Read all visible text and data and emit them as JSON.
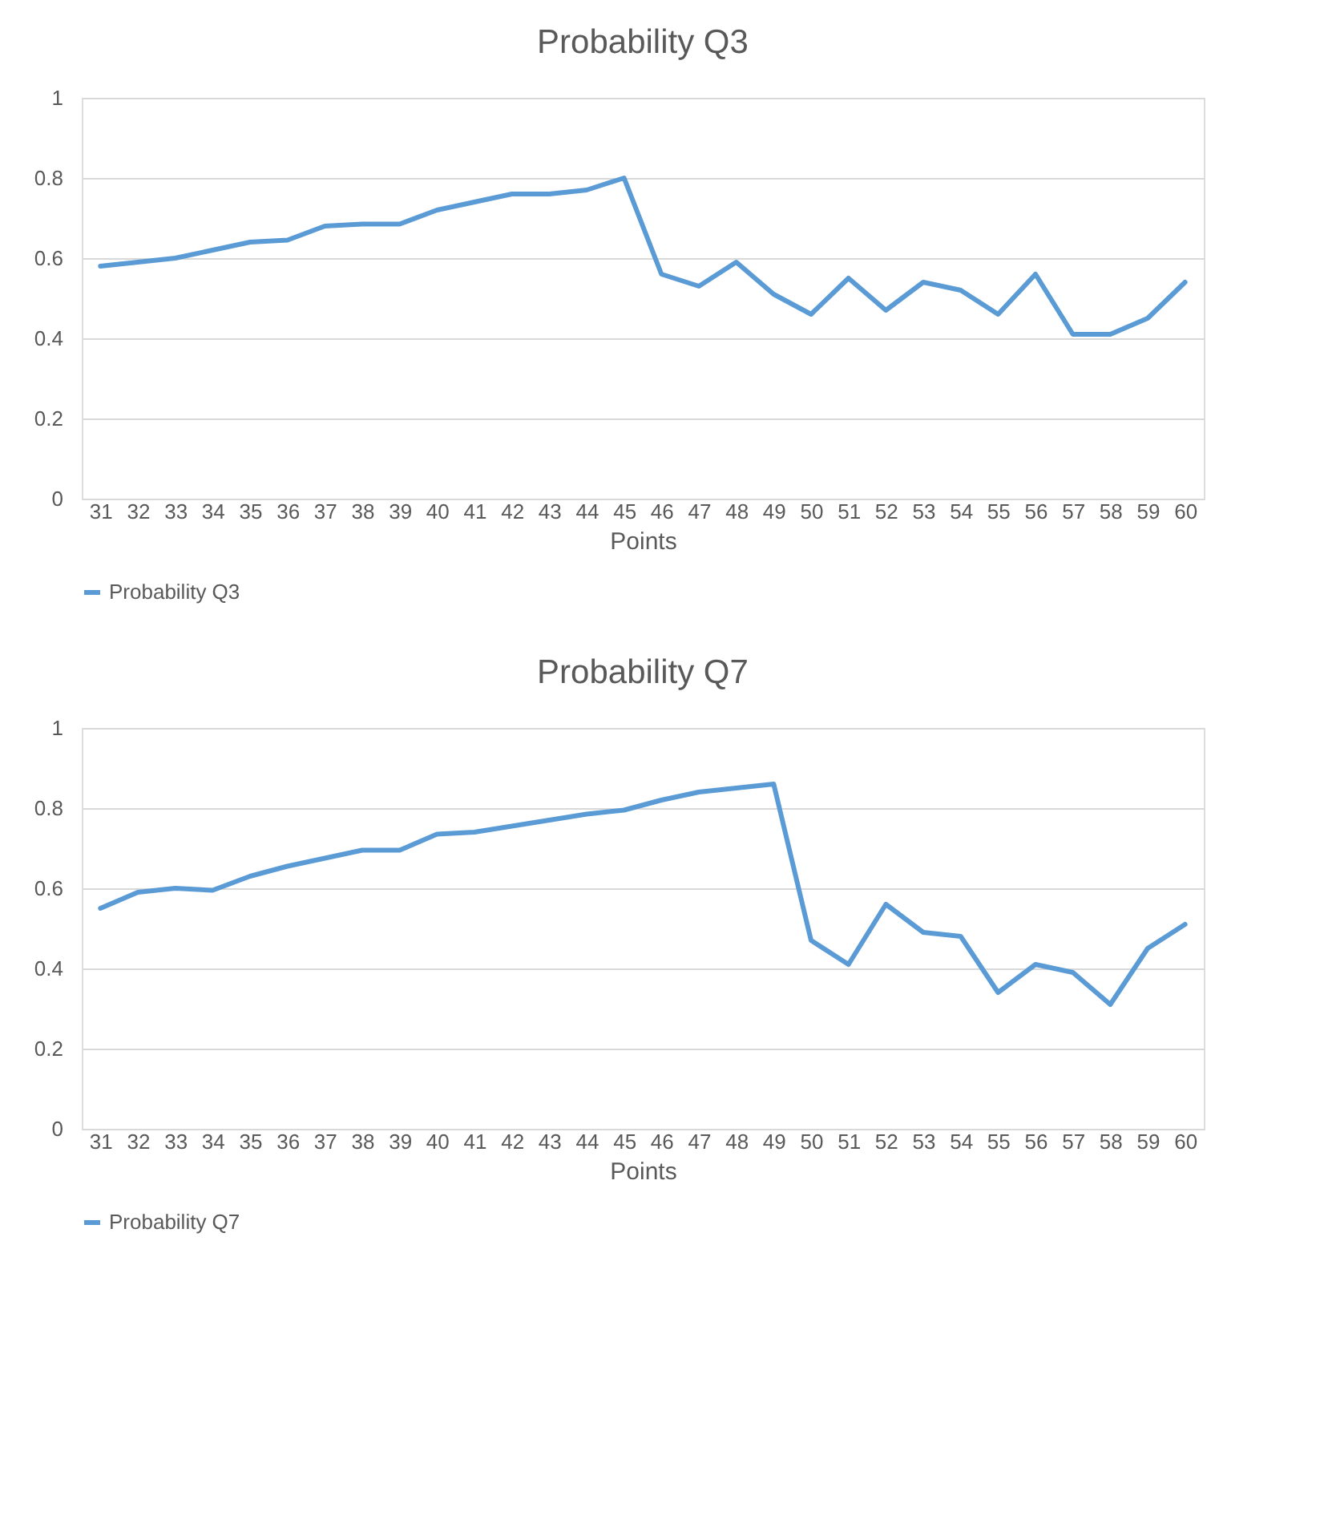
{
  "chart_data": [
    {
      "type": "line",
      "title": "Probability Q3",
      "xlabel": "Points",
      "categories": [
        "31",
        "32",
        "33",
        "34",
        "35",
        "36",
        "37",
        "38",
        "39",
        "40",
        "41",
        "42",
        "43",
        "44",
        "45",
        "46",
        "47",
        "48",
        "49",
        "50",
        "51",
        "52",
        "53",
        "54",
        "55",
        "56",
        "57",
        "58",
        "59",
        "60"
      ],
      "series": [
        {
          "name": "Probability Q3",
          "color": "#5b9bd5",
          "values": [
            0.58,
            0.59,
            0.6,
            0.62,
            0.64,
            0.645,
            0.68,
            0.685,
            0.685,
            0.72,
            0.74,
            0.76,
            0.76,
            0.77,
            0.8,
            0.56,
            0.53,
            0.59,
            0.51,
            0.46,
            0.55,
            0.47,
            0.54,
            0.52,
            0.46,
            0.56,
            0.41,
            0.41,
            0.45,
            0.54
          ]
        }
      ],
      "ylim": [
        0,
        1
      ],
      "yticks": [
        0,
        0.2,
        0.4,
        0.6,
        0.8,
        1
      ],
      "grid": "y",
      "legend": "bottom",
      "marker": "none",
      "line_style": "solid"
    },
    {
      "type": "line",
      "title": "Probability Q7",
      "xlabel": "Points",
      "categories": [
        "31",
        "32",
        "33",
        "34",
        "35",
        "36",
        "37",
        "38",
        "39",
        "40",
        "41",
        "42",
        "43",
        "44",
        "45",
        "46",
        "47",
        "48",
        "49",
        "50",
        "51",
        "52",
        "53",
        "54",
        "55",
        "56",
        "57",
        "58",
        "59",
        "60"
      ],
      "series": [
        {
          "name": "Probability Q7",
          "color": "#5b9bd5",
          "values": [
            0.55,
            0.59,
            0.6,
            0.595,
            0.63,
            0.655,
            0.675,
            0.695,
            0.695,
            0.735,
            0.74,
            0.755,
            0.77,
            0.785,
            0.795,
            0.82,
            0.84,
            0.85,
            0.86,
            0.47,
            0.41,
            0.56,
            0.49,
            0.48,
            0.34,
            0.41,
            0.39,
            0.31,
            0.45,
            0.51
          ]
        }
      ],
      "ylim": [
        0,
        1
      ],
      "yticks": [
        0,
        0.2,
        0.4,
        0.6,
        0.8,
        1
      ],
      "grid": "y",
      "legend": "bottom",
      "marker": "none",
      "line_style": "solid"
    }
  ]
}
